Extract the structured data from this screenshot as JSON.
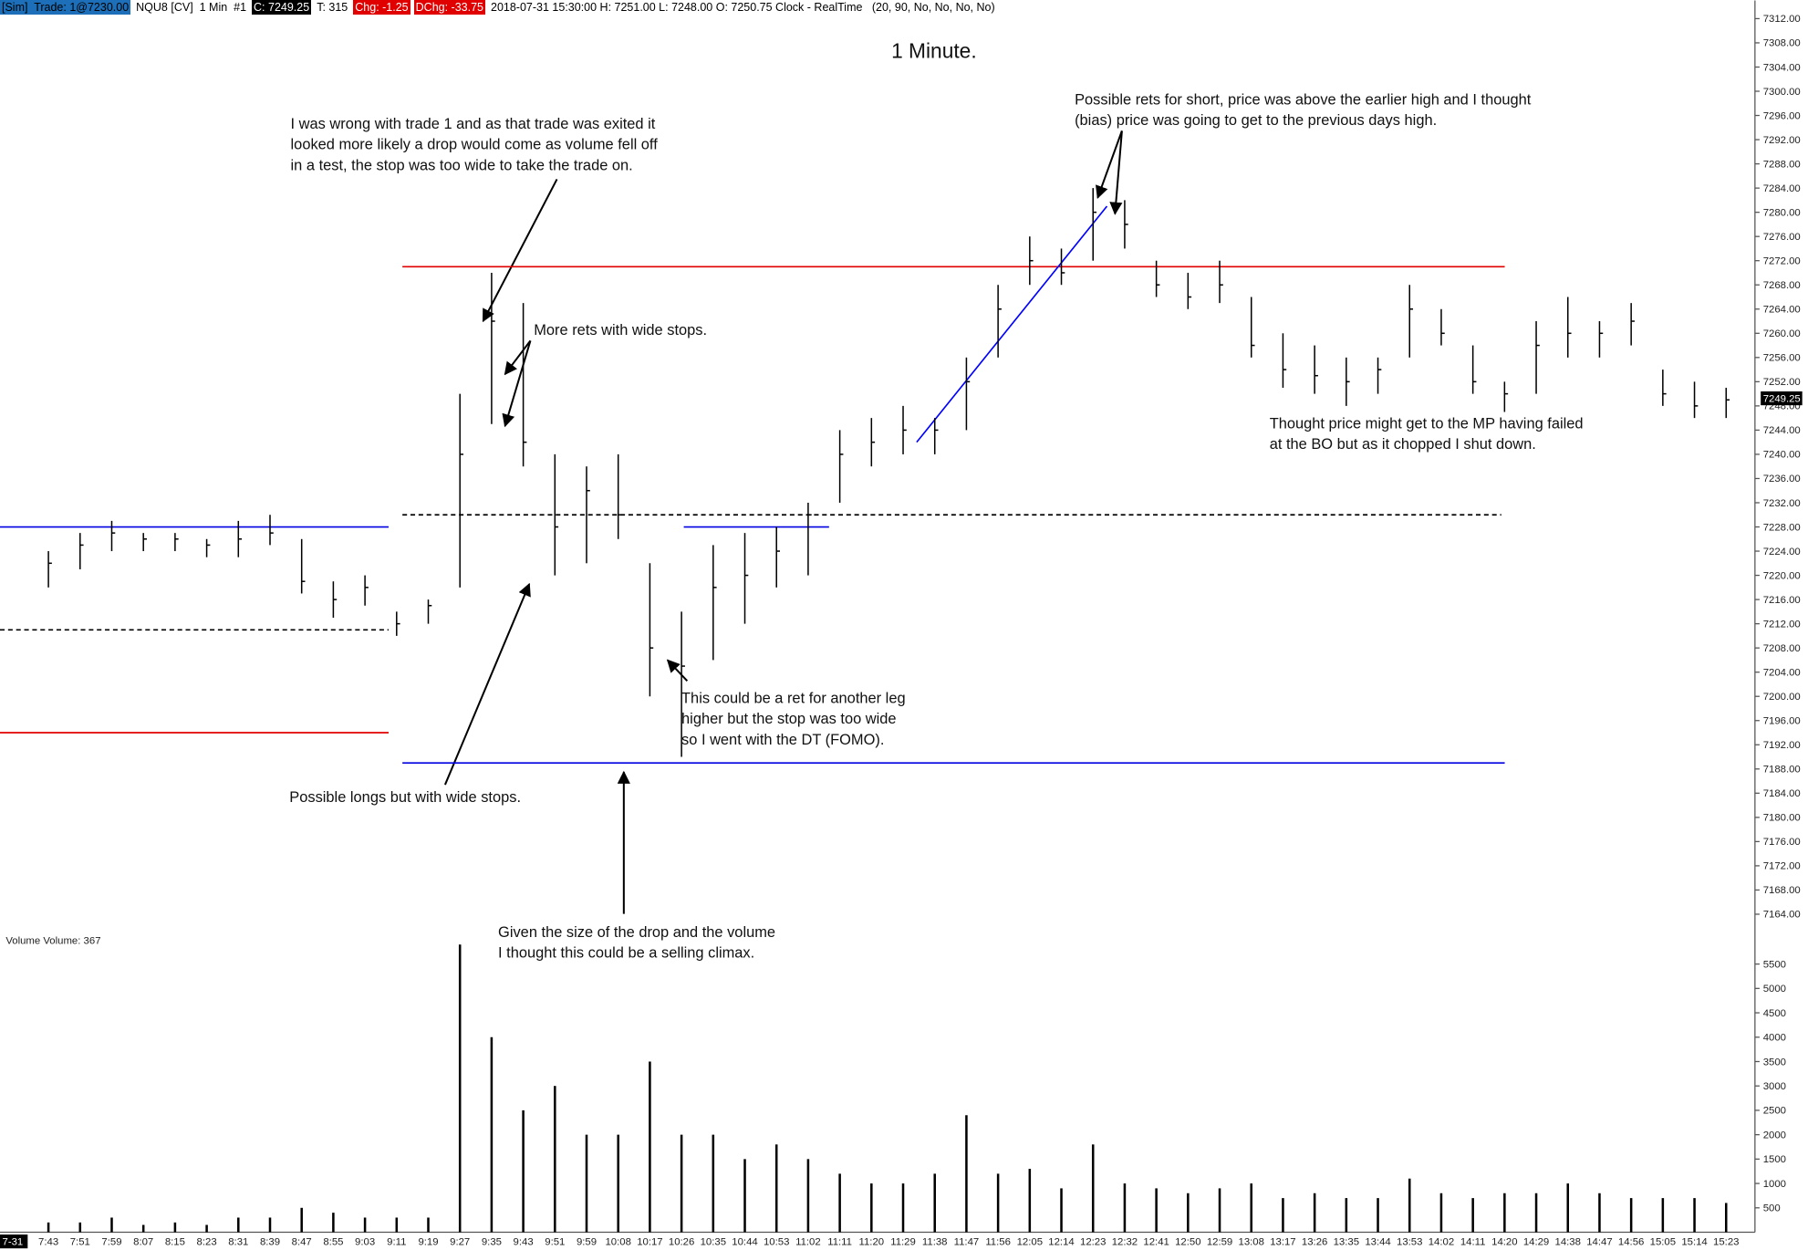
{
  "chart_data": {
    "type": "ohlc",
    "title": "1 Minute.",
    "header": [
      {
        "text": "[Sim]  Trade: 1@7230.00",
        "bg": "#1c6fb8",
        "color": "#000000"
      },
      {
        "text": "NQU8 [CV]  1 Min  #1"
      },
      {
        "text": "C: 7249.25",
        "bg": "#000000",
        "color": "#ffffff"
      },
      {
        "text": "T: 315"
      },
      {
        "text": "Chg: -1.25",
        "bg": "#e00000",
        "color": "#ffffff"
      },
      {
        "text": "DChg: -33.75",
        "bg": "#e00000",
        "color": "#ffffff"
      },
      {
        "text": "2018-07-31 15:30:00 H: 7251.00 L: 7248.00 O: 7250.75 Clock - RealTime   (20, 90, No, No, No, No)"
      }
    ],
    "date_label": "7-31",
    "volume_label": "Volume  Volume: 367",
    "last_price": 7249.25,
    "categories": [
      "7:43",
      "7:51",
      "7:59",
      "8:07",
      "8:15",
      "8:23",
      "8:31",
      "8:39",
      "8:47",
      "8:55",
      "9:03",
      "9:11",
      "9:19",
      "9:27",
      "9:35",
      "9:43",
      "9:51",
      "9:59",
      "10:08",
      "10:17",
      "10:26",
      "10:35",
      "10:44",
      "10:53",
      "11:02",
      "11:11",
      "11:20",
      "11:29",
      "11:38",
      "11:47",
      "11:56",
      "12:05",
      "12:14",
      "12:23",
      "12:32",
      "12:41",
      "12:50",
      "12:59",
      "13:08",
      "13:17",
      "13:26",
      "13:35",
      "13:44",
      "13:53",
      "14:02",
      "14:11",
      "14:20",
      "14:29",
      "14:38",
      "14:47",
      "14:56",
      "15:05",
      "15:14",
      "15:23"
    ],
    "high": [
      7224,
      7227,
      7229,
      7227,
      7227,
      7226,
      7229,
      7230,
      7226,
      7219,
      7220,
      7214,
      7216,
      7250,
      7270,
      7265,
      7240,
      7238,
      7240,
      7222,
      7214,
      7225,
      7227,
      7228,
      7232,
      7244,
      7246,
      7248,
      7246,
      7256,
      7268,
      7276,
      7274,
      7284,
      7282,
      7272,
      7270,
      7272,
      7266,
      7260,
      7258,
      7256,
      7256,
      7268,
      7264,
      7258,
      7252,
      7262,
      7266,
      7262,
      7265,
      7254,
      7252,
      7251
    ],
    "low": [
      7218,
      7221,
      7224,
      7224,
      7224,
      7223,
      7223,
      7225,
      7217,
      7213,
      7215,
      7210,
      7212,
      7218,
      7245,
      7238,
      7220,
      7222,
      7226,
      7200,
      7190,
      7206,
      7212,
      7218,
      7220,
      7232,
      7238,
      7240,
      7240,
      7244,
      7256,
      7268,
      7268,
      7272,
      7274,
      7266,
      7264,
      7265,
      7256,
      7251,
      7250,
      7248,
      7250,
      7256,
      7258,
      7250,
      7247,
      7250,
      7256,
      7256,
      7258,
      7248,
      7246,
      7246
    ],
    "close": [
      7222,
      7225,
      7227,
      7226,
      7226,
      7225,
      7226,
      7227,
      7219,
      7216,
      7218,
      7212,
      7215,
      7240,
      7262,
      7242,
      7228,
      7234,
      7230,
      7208,
      7205,
      7218,
      7220,
      7224,
      7230,
      7240,
      7242,
      7244,
      7244,
      7252,
      7264,
      7272,
      7270,
      7280,
      7278,
      7268,
      7266,
      7268,
      7258,
      7254,
      7253,
      7252,
      7254,
      7264,
      7260,
      7252,
      7250,
      7258,
      7260,
      7260,
      7262,
      7250,
      7248,
      7249
    ],
    "volume": [
      200,
      200,
      300,
      150,
      200,
      150,
      300,
      300,
      500,
      400,
      300,
      300,
      300,
      5900,
      4000,
      2500,
      3000,
      2000,
      2000,
      3500,
      2000,
      2000,
      1500,
      1800,
      1500,
      1200,
      1000,
      1000,
      1200,
      2400,
      1200,
      1300,
      900,
      1800,
      1000,
      900,
      800,
      900,
      1000,
      700,
      800,
      700,
      700,
      1100,
      800,
      700,
      800,
      800,
      1000,
      800,
      700,
      700,
      700,
      600
    ],
    "ylim": [
      7161,
      7315
    ],
    "yticks": [
      {
        "value": 7164,
        "label": "7164.00"
      },
      {
        "value": 7168,
        "label": "7168.00"
      },
      {
        "value": 7172,
        "label": "7172.00"
      },
      {
        "value": 7176,
        "label": "7176.00"
      },
      {
        "value": 7180,
        "label": "7180.00"
      },
      {
        "value": 7184,
        "label": "7184.00"
      },
      {
        "value": 7188,
        "label": "7188.00"
      },
      {
        "value": 7192,
        "label": "7192.00"
      },
      {
        "value": 7196,
        "label": "7196.00"
      },
      {
        "value": 7200,
        "label": "7200.00"
      },
      {
        "value": 7204,
        "label": "7204.00"
      },
      {
        "value": 7208,
        "label": "7208.00"
      },
      {
        "value": 7212,
        "label": "7212.00"
      },
      {
        "value": 7216,
        "label": "7216.00"
      },
      {
        "value": 7220,
        "label": "7220.00"
      },
      {
        "value": 7224,
        "label": "7224.00"
      },
      {
        "value": 7228,
        "label": "7228.00"
      },
      {
        "value": 7232,
        "label": "7232.00"
      },
      {
        "value": 7236,
        "label": "7236.00"
      },
      {
        "value": 7240,
        "label": "7240.00"
      },
      {
        "value": 7244,
        "label": "7244.00"
      },
      {
        "value": 7248,
        "label": "7248.00"
      },
      {
        "value": 7252,
        "label": "7252.00"
      },
      {
        "value": 7256,
        "label": "7256.00"
      },
      {
        "value": 7260,
        "label": "7260.00"
      },
      {
        "value": 7264,
        "label": "7264.00"
      },
      {
        "value": 7268,
        "label": "7268.00"
      },
      {
        "value": 7272,
        "label": "7272.00"
      },
      {
        "value": 7276,
        "label": "7276.00"
      },
      {
        "value": 7280,
        "label": "7280.00"
      },
      {
        "value": 7284,
        "label": "7284.00"
      },
      {
        "value": 7288,
        "label": "7288.00"
      },
      {
        "value": 7292,
        "label": "7292.00"
      },
      {
        "value": 7296,
        "label": "7296.00"
      },
      {
        "value": 7300,
        "label": "7300.00"
      },
      {
        "value": 7304,
        "label": "7304.00"
      },
      {
        "value": 7308,
        "label": "7308.00"
      },
      {
        "value": 7312,
        "label": "7312.00"
      }
    ],
    "vlim": [
      0,
      6150
    ],
    "vticks": [
      500,
      1000,
      1500,
      2000,
      2500,
      3000,
      3500,
      4000,
      4500,
      5000,
      5500
    ],
    "levels": [
      {
        "value": 7271,
        "color": "#e00000",
        "style": "solid"
      },
      {
        "value": 7189,
        "color": "#0000e0",
        "style": "solid"
      },
      {
        "value": 7230,
        "color": "#000000",
        "style": "dashed"
      },
      {
        "value": 7228,
        "color": "#0000e0",
        "style": "solid"
      },
      {
        "value": 7211,
        "color": "#000000",
        "style": "dashed"
      },
      {
        "value": 7194,
        "color": "#e00000",
        "style": "solid"
      },
      {
        "value": 7228,
        "color": "#0000e0",
        "style": "solid"
      }
    ],
    "trendline": {
      "values": [
        7242,
        7281
      ],
      "color": "#0000ff"
    },
    "annotations": [
      {
        "lines": [
          "I was wrong with trade 1 and as that trade was exited it",
          "looked more likely a drop would come as volume fell off",
          "in a test, the stop was too wide to take the trade on."
        ]
      },
      {
        "lines": [
          "More rets with wide stops."
        ]
      },
      {
        "lines": [
          "Possible rets for short, price was above the earlier high and I thought",
          "(bias) price was going to get to the previous days high."
        ]
      },
      {
        "lines": [
          "Thought price might get to the MP having failed",
          "at the BO but as it chopped I shut down."
        ]
      },
      {
        "lines": [
          "This could be a ret for another leg",
          "higher but the stop was too wide",
          "so I went with the DT (FOMO)."
        ]
      },
      {
        "lines": [
          "Possible longs but with wide stops."
        ]
      },
      {
        "lines": [
          "Given the size of the drop and the volume",
          "I thought this could be a selling climax."
        ]
      }
    ]
  }
}
